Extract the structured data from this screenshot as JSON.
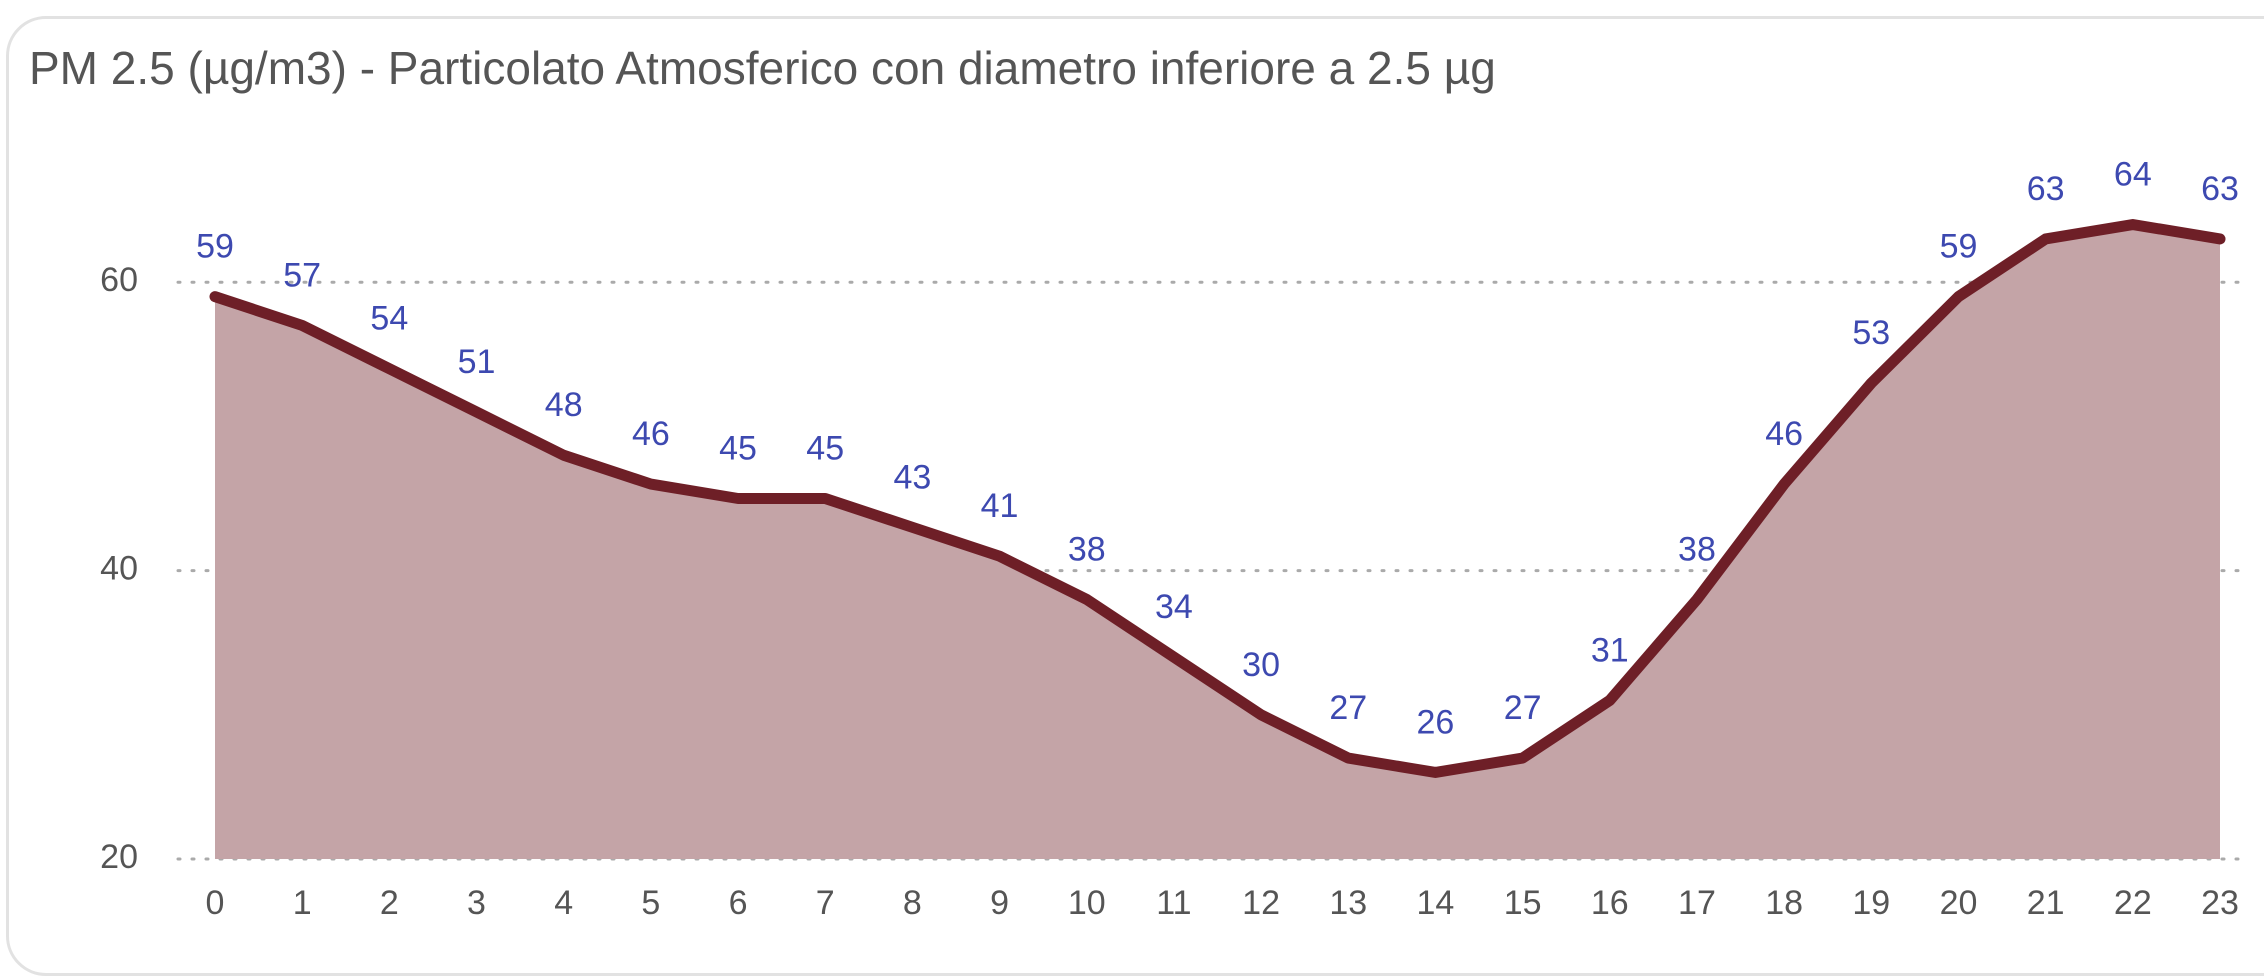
{
  "chart_data": {
    "type": "area",
    "title": "PM 2.5 (µg/m3) - Particolato Atmosferico con diametro inferiore a 2.5 µg",
    "categories": [
      "0",
      "1",
      "2",
      "3",
      "4",
      "5",
      "6",
      "7",
      "8",
      "9",
      "10",
      "11",
      "12",
      "13",
      "14",
      "15",
      "16",
      "17",
      "18",
      "19",
      "20",
      "21",
      "22",
      "23"
    ],
    "values": [
      59,
      57,
      54,
      51,
      48,
      46,
      45,
      45,
      43,
      41,
      38,
      34,
      30,
      27,
      26,
      27,
      31,
      38,
      46,
      53,
      59,
      63,
      64,
      63
    ],
    "color": "#6e1f27",
    "fill": "#c4a4a7",
    "label_color": "#3d49b0",
    "ylim": [
      20,
      70
    ],
    "yticks": [
      20,
      40,
      60
    ],
    "grid": true
  }
}
